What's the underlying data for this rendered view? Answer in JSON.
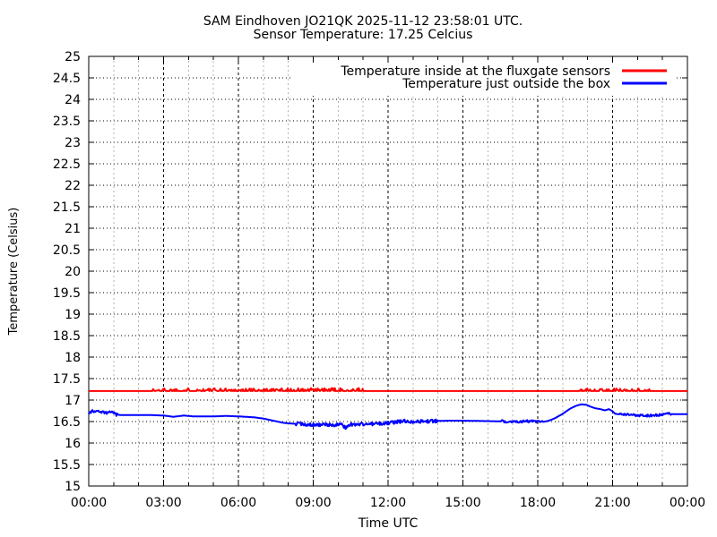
{
  "header": {
    "title_line1": "SAM Eindhoven JO21QK 2025-11-12 23:58:01 UTC.",
    "title_line2": "Sensor Temperature: 17.25 Celcius"
  },
  "axes": {
    "x_label": "Time UTC",
    "y_label": "Temperature (Celsius)",
    "x_tick_labels": [
      "00:00",
      "03:00",
      "06:00",
      "09:00",
      "12:00",
      "15:00",
      "18:00",
      "21:00",
      "00:00"
    ],
    "y_tick_labels": [
      "15",
      "15.5",
      "16",
      "16.5",
      "17",
      "17.5",
      "18",
      "18.5",
      "19",
      "19.5",
      "20",
      "20.5",
      "21",
      "21.5",
      "22",
      "22.5",
      "23",
      "23.5",
      "24",
      "24.5",
      "25"
    ]
  },
  "legend": {
    "items": [
      {
        "label": "Temperature inside at the fluxgate sensors",
        "color": "#ff0000"
      },
      {
        "label": "Temperature just outside the box",
        "color": "#0000ff"
      }
    ]
  },
  "chart_data": {
    "type": "line",
    "title": "SAM Eindhoven JO21QK 2025-11-12 23:58:01 UTC.",
    "subtitle": "Sensor Temperature: 17.25 Celcius",
    "xlabel": "Time UTC",
    "ylabel": "Temperature (Celsius)",
    "x_unit": "hours UTC",
    "xlim": [
      0,
      24
    ],
    "ylim": [
      15,
      25
    ],
    "x_tick_interval_hours": 3,
    "x_minor_tick_interval_hours": 1,
    "y_tick_interval": 0.5,
    "grid": true,
    "legend_position": "inside-top-right",
    "colors": {
      "grid_major": "#000000",
      "grid_minor": "#b3b3b3",
      "border": "#000000"
    },
    "series": [
      {
        "name": "Temperature inside at the fluxgate sensors",
        "color": "#ff0000",
        "points": [
          [
            0,
            17.21
          ],
          [
            24,
            17.21
          ]
        ],
        "noise": [
          {
            "from": 2.5,
            "to": 11.0,
            "amp": 0.07,
            "bias": "up"
          },
          {
            "from": 19.6,
            "to": 22.5,
            "amp": 0.06,
            "bias": "up"
          }
        ]
      },
      {
        "name": "Temperature just outside the box",
        "color": "#0000ff",
        "points": [
          [
            0,
            16.7
          ],
          [
            0.15,
            16.74
          ],
          [
            0.5,
            16.73
          ],
          [
            0.7,
            16.7
          ],
          [
            0.9,
            16.73
          ],
          [
            1.1,
            16.66
          ],
          [
            1.35,
            16.65
          ],
          [
            2.5,
            16.65
          ],
          [
            3.0,
            16.64
          ],
          [
            3.4,
            16.61
          ],
          [
            3.8,
            16.64
          ],
          [
            4.2,
            16.62
          ],
          [
            5.0,
            16.62
          ],
          [
            5.5,
            16.63
          ],
          [
            6.0,
            16.62
          ],
          [
            6.6,
            16.6
          ],
          [
            7.0,
            16.57
          ],
          [
            7.4,
            16.52
          ],
          [
            7.8,
            16.47
          ],
          [
            8.2,
            16.45
          ],
          [
            9.0,
            16.43
          ],
          [
            9.6,
            16.42
          ],
          [
            10.1,
            16.43
          ],
          [
            10.3,
            16.36
          ],
          [
            10.45,
            16.43
          ],
          [
            11.0,
            16.44
          ],
          [
            11.8,
            16.45
          ],
          [
            12.2,
            16.48
          ],
          [
            12.6,
            16.51
          ],
          [
            13.2,
            16.5
          ],
          [
            13.8,
            16.51
          ],
          [
            14.4,
            16.52
          ],
          [
            15.0,
            16.52
          ],
          [
            16.0,
            16.51
          ],
          [
            17.0,
            16.5
          ],
          [
            17.6,
            16.51
          ],
          [
            18.2,
            16.49
          ],
          [
            18.45,
            16.52
          ],
          [
            18.7,
            16.58
          ],
          [
            19.0,
            16.68
          ],
          [
            19.3,
            16.8
          ],
          [
            19.55,
            16.87
          ],
          [
            19.75,
            16.9
          ],
          [
            19.95,
            16.89
          ],
          [
            20.1,
            16.85
          ],
          [
            20.3,
            16.81
          ],
          [
            20.5,
            16.79
          ],
          [
            20.7,
            16.76
          ],
          [
            20.85,
            16.79
          ],
          [
            21.0,
            16.74
          ],
          [
            21.1,
            16.68
          ],
          [
            21.4,
            16.66
          ],
          [
            22.0,
            16.65
          ],
          [
            22.4,
            16.64
          ],
          [
            22.9,
            16.65
          ],
          [
            23.15,
            16.68
          ],
          [
            23.6,
            16.67
          ],
          [
            24.0,
            16.67
          ]
        ],
        "noise": [
          {
            "from": 0.0,
            "to": 1.2,
            "amp": 0.03,
            "bias": "both"
          },
          {
            "from": 8.3,
            "to": 14.0,
            "amp": 0.04,
            "bias": "both"
          },
          {
            "from": 16.5,
            "to": 18.2,
            "amp": 0.03,
            "bias": "both"
          },
          {
            "from": 21.3,
            "to": 23.4,
            "amp": 0.03,
            "bias": "both"
          }
        ]
      }
    ]
  }
}
